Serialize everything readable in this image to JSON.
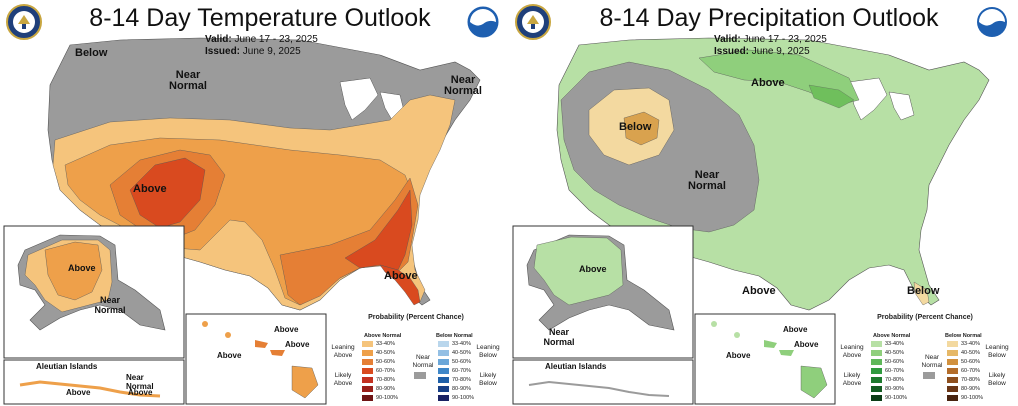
{
  "left": {
    "title": "8-14 Day Temperature Outlook",
    "valid_label": "Valid:",
    "valid_value": "June 17 - 23, 2025",
    "issued_label": "Issued:",
    "issued_value": "June 9, 2025",
    "map_labels": {
      "below": "Below",
      "near_normal_north": "Near Normal",
      "near_normal_ne": "Near Normal",
      "above_sw": "Above",
      "above_fl": "Above"
    },
    "alaska_labels": {
      "above": "Above",
      "near_normal": "Near Normal"
    },
    "aleutian": {
      "title": "Aleutian Islands",
      "near_normal": "Near Normal",
      "above1": "Above",
      "above2": "Above"
    },
    "hawaii_labels": {
      "above1": "Above",
      "above2": "Above",
      "above3": "Above"
    },
    "legend": {
      "title": "Probability (Percent Chance)",
      "above_header": "Above Normal",
      "below_header": "Below Normal",
      "near_normal": "Near Normal",
      "leaning_left": "Leaning Above",
      "likely_left": "Likely Above",
      "leaning_right": "Leaning Below",
      "likely_right": "Likely Below",
      "ranges": [
        "33-40%",
        "40-50%",
        "50-60%",
        "60-70%",
        "70-80%",
        "80-90%",
        "90-100%"
      ],
      "above_colors": [
        "#f5c47c",
        "#eea04a",
        "#e57f35",
        "#d94a1f",
        "#c33121",
        "#9a1f1a",
        "#6e1414"
      ],
      "below_colors": [
        "#b9d6ec",
        "#93bfe4",
        "#6ba7d9",
        "#3f87c8",
        "#1e5fa8",
        "#173f86",
        "#1a2263"
      ]
    }
  },
  "right": {
    "title": "8-14 Day Precipitation Outlook",
    "valid_label": "Valid:",
    "valid_value": "June 17 - 23, 2025",
    "issued_label": "Issued:",
    "issued_value": "June 9, 2025",
    "map_labels": {
      "above_north": "Above",
      "below_west": "Below",
      "near_normal": "Near Normal",
      "above_tx": "Above",
      "below_fl": "Below"
    },
    "alaska_labels": {
      "above": "Above",
      "near_normal": "Near Normal"
    },
    "aleutian": {
      "title": "Aleutian Islands"
    },
    "hawaii_labels": {
      "above1": "Above",
      "above2": "Above",
      "above3": "Above"
    },
    "legend": {
      "title": "Probability (Percent Chance)",
      "above_header": "Above Normal",
      "below_header": "Below Normal",
      "near_normal": "Near Normal",
      "leaning_left": "Leaning Above",
      "likely_left": "Likely Above",
      "leaning_right": "Leaning Below",
      "likely_right": "Likely Below",
      "ranges": [
        "33-40%",
        "40-50%",
        "50-60%",
        "60-70%",
        "70-80%",
        "80-90%",
        "90-100%"
      ],
      "above_colors": [
        "#b7e0a5",
        "#8fcf7c",
        "#5fb85a",
        "#2f9a3e",
        "#1d7a2e",
        "#135c22",
        "#0b3d16"
      ],
      "below_colors": [
        "#f3d9a0",
        "#e6b867",
        "#d2913e",
        "#b46d2a",
        "#8e4f1e",
        "#6a3616",
        "#48230f"
      ]
    }
  },
  "colors": {
    "near_normal": "#9b9b9b",
    "temp_above_33": "#f5c47c",
    "temp_above_40": "#eea04a",
    "temp_above_50": "#e57f35",
    "temp_above_60": "#d94a1f",
    "precip_above_33": "#b7e0a5",
    "precip_above_40": "#8fcf7c",
    "precip_below_33": "#f3d9a0",
    "precip_below_40": "#d9a24e",
    "water": "#ffffff",
    "land_outline": "#555555"
  }
}
